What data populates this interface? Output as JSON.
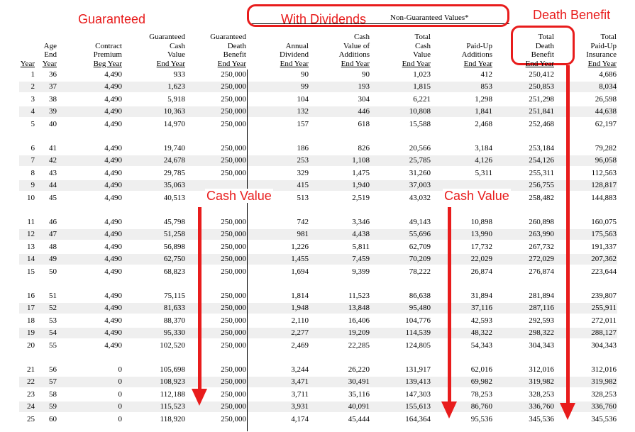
{
  "annotations": {
    "guaranteed": "Guaranteed",
    "with_dividends": "With Dividends",
    "death_benefit": "Death Benefit",
    "cash_value_left": "Cash Value",
    "cash_value_right": "Cash Value"
  },
  "non_guaranteed_label": "Non-Guaranteed Values*",
  "headers": {
    "year": [
      "Year"
    ],
    "age": [
      "Age",
      "End",
      "Year"
    ],
    "premium": [
      "Contract",
      "Premium",
      "Beg Year"
    ],
    "gcv": [
      "Guaranteed",
      "Cash",
      "Value",
      "End Year"
    ],
    "gdb": [
      "Guaranteed",
      "Death",
      "Benefit",
      "End Year"
    ],
    "div": [
      "Annual",
      "Dividend",
      "End Year"
    ],
    "cva": [
      "Cash",
      "Value of",
      "Additions",
      "End Year"
    ],
    "tcv": [
      "Total",
      "Cash",
      "Value",
      "End Year"
    ],
    "pua": [
      "Paid-Up",
      "Additions",
      "End Year"
    ],
    "tdb": [
      "Total",
      "Death",
      "Benefit",
      "End Year"
    ],
    "tpui": [
      "Total",
      "Paid-Up",
      "Insurance",
      "End Year"
    ]
  },
  "rows": [
    [
      "1",
      "36",
      "4,490",
      "933",
      "250,000",
      "90",
      "90",
      "1,023",
      "412",
      "250,412",
      "4,686"
    ],
    [
      "2",
      "37",
      "4,490",
      "1,623",
      "250,000",
      "99",
      "193",
      "1,815",
      "853",
      "250,853",
      "8,034"
    ],
    [
      "3",
      "38",
      "4,490",
      "5,918",
      "250,000",
      "104",
      "304",
      "6,221",
      "1,298",
      "251,298",
      "26,598"
    ],
    [
      "4",
      "39",
      "4,490",
      "10,363",
      "250,000",
      "132",
      "446",
      "10,808",
      "1,841",
      "251,841",
      "44,638"
    ],
    [
      "5",
      "40",
      "4,490",
      "14,970",
      "250,000",
      "157",
      "618",
      "15,588",
      "2,468",
      "252,468",
      "62,197"
    ],
    [
      "6",
      "41",
      "4,490",
      "19,740",
      "250,000",
      "186",
      "826",
      "20,566",
      "3,184",
      "253,184",
      "79,282"
    ],
    [
      "7",
      "42",
      "4,490",
      "24,678",
      "250,000",
      "253",
      "1,108",
      "25,785",
      "4,126",
      "254,126",
      "96,058"
    ],
    [
      "8",
      "43",
      "4,490",
      "29,785",
      "250,000",
      "329",
      "1,475",
      "31,260",
      "5,311",
      "255,311",
      "112,563"
    ],
    [
      "9",
      "44",
      "4,490",
      "35,063",
      "",
      "415",
      "1,940",
      "37,003",
      "",
      "256,755",
      "128,817"
    ],
    [
      "10",
      "45",
      "4,490",
      "40,513",
      "",
      "513",
      "2,519",
      "43,032",
      "",
      "258,482",
      "144,883"
    ],
    [
      "11",
      "46",
      "4,490",
      "45,798",
      "250,000",
      "742",
      "3,346",
      "49,143",
      "10,898",
      "260,898",
      "160,075"
    ],
    [
      "12",
      "47",
      "4,490",
      "51,258",
      "250,000",
      "981",
      "4,438",
      "55,696",
      "13,990",
      "263,990",
      "175,563"
    ],
    [
      "13",
      "48",
      "4,490",
      "56,898",
      "250,000",
      "1,226",
      "5,811",
      "62,709",
      "17,732",
      "267,732",
      "191,337"
    ],
    [
      "14",
      "49",
      "4,490",
      "62,750",
      "250,000",
      "1,455",
      "7,459",
      "70,209",
      "22,029",
      "272,029",
      "207,362"
    ],
    [
      "15",
      "50",
      "4,490",
      "68,823",
      "250,000",
      "1,694",
      "9,399",
      "78,222",
      "26,874",
      "276,874",
      "223,644"
    ],
    [
      "16",
      "51",
      "4,490",
      "75,115",
      "250,000",
      "1,814",
      "11,523",
      "86,638",
      "31,894",
      "281,894",
      "239,807"
    ],
    [
      "17",
      "52",
      "4,490",
      "81,633",
      "250,000",
      "1,948",
      "13,848",
      "95,480",
      "37,116",
      "287,116",
      "255,911"
    ],
    [
      "18",
      "53",
      "4,490",
      "88,370",
      "250,000",
      "2,110",
      "16,406",
      "104,776",
      "42,593",
      "292,593",
      "272,011"
    ],
    [
      "19",
      "54",
      "4,490",
      "95,330",
      "250,000",
      "2,277",
      "19,209",
      "114,539",
      "48,322",
      "298,322",
      "288,127"
    ],
    [
      "20",
      "55",
      "4,490",
      "102,520",
      "250,000",
      "2,469",
      "22,285",
      "124,805",
      "54,343",
      "304,343",
      "304,343"
    ],
    [
      "21",
      "56",
      "0",
      "105,698",
      "250,000",
      "3,244",
      "26,220",
      "131,917",
      "62,016",
      "312,016",
      "312,016"
    ],
    [
      "22",
      "57",
      "0",
      "108,923",
      "250,000",
      "3,471",
      "30,491",
      "139,413",
      "69,982",
      "319,982",
      "319,982"
    ],
    [
      "23",
      "58",
      "0",
      "112,188",
      "250,000",
      "3,711",
      "35,116",
      "147,303",
      "78,253",
      "328,253",
      "328,253"
    ],
    [
      "24",
      "59",
      "0",
      "115,523",
      "250,000",
      "3,931",
      "40,091",
      "155,613",
      "86,760",
      "336,760",
      "336,760"
    ],
    [
      "25",
      "60",
      "0",
      "118,920",
      "250,000",
      "4,174",
      "45,444",
      "164,364",
      "95,536",
      "345,536",
      "345,536"
    ]
  ]
}
